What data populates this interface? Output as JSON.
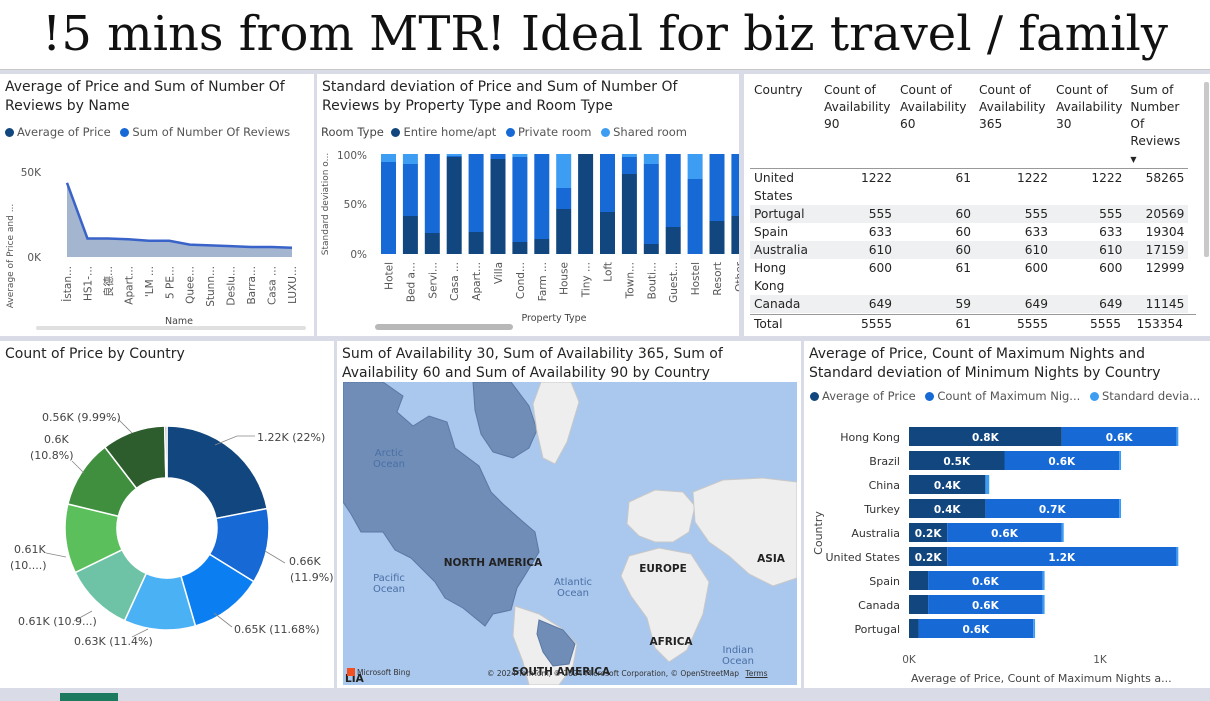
{
  "header": {
    "title": "!5 mins from MTR! Ideal for biz travel / family"
  },
  "colors": {
    "dark": "#12467f",
    "mid": "#1769d6",
    "light": "#3c9df3",
    "area": "#a3b5cf",
    "line": "#3a63c9"
  },
  "p1": {
    "title": "Average of Price and Sum of Number Of Reviews by Name",
    "legend": [
      "Average of Price",
      "Sum of Number Of Reviews"
    ],
    "ylabel": "Average of Price and ...",
    "xlabel": "Name",
    "yticks": [
      "50K",
      "0K"
    ]
  },
  "p2": {
    "title": "Standard deviation of Price and Sum of Number Of Reviews by Property Type and Room Type",
    "legend_title": "Room Type",
    "legend": [
      "Entire home/apt",
      "Private room",
      "Shared room"
    ],
    "ylabel": "Standard deviation o...",
    "xlabel": "Property Type",
    "yticks": [
      "100%",
      "50%",
      "0%"
    ]
  },
  "p3": {
    "headers": [
      "Country",
      "Count of Availability 90",
      "Count of Availability 60",
      "Count of Availability 365",
      "Count of Availability 30",
      "Sum of Number Of Reviews"
    ],
    "rows": [
      [
        "United States",
        "1222",
        "61",
        "1222",
        "1222",
        "58265"
      ],
      [
        "Portugal",
        "555",
        "60",
        "555",
        "555",
        "20569"
      ],
      [
        "Spain",
        "633",
        "60",
        "633",
        "633",
        "19304"
      ],
      [
        "Australia",
        "610",
        "60",
        "610",
        "610",
        "17159"
      ],
      [
        "Hong Kong",
        "600",
        "61",
        "600",
        "600",
        "12999"
      ],
      [
        "Canada",
        "649",
        "59",
        "649",
        "649",
        "11145"
      ]
    ],
    "total": [
      "Total",
      "5555",
      "61",
      "5555",
      "5555",
      "153354"
    ],
    "sort_icon": "sort-descending-icon"
  },
  "p4": {
    "title": "Count of Price by Country",
    "labels": [
      "1.22K (22%)",
      "0.66K",
      "(11.9%)",
      "0.65K (11.68%)",
      "0.63K (11.4%)",
      "0.61K (10.9...)",
      "0.61K",
      "(10....)",
      "0.6K",
      "(10.8%)",
      "0.56K (9.99%)"
    ]
  },
  "p5": {
    "title": "Sum of Availability 30, Sum of Availability 365, Sum of Availability 60 and Sum of Availability 90 by Country",
    "labels": {
      "arctic1": "Arctic",
      "arctic2": "Ocean",
      "na": "NORTH AMERICA",
      "europe": "EUROPE",
      "asia": "ASIA",
      "pacific1": "Pacific",
      "pacific2": "Ocean",
      "atlantic1": "Atlantic",
      "atlantic2": "Ocean",
      "africa": "AFRICA",
      "sa": "SOUTH AMERICA",
      "indian1": "Indian",
      "indian2": "Ocean",
      "lia": "LIA"
    },
    "brand": "Microsoft Bing",
    "attribution": "© 2024 TomTom, © 2024 Microsoft Corporation, © OpenStreetMap",
    "terms": "Terms"
  },
  "p6": {
    "title": "Average of Price, Count of Maximum Nights and Standard deviation of Minimum Nights by Country",
    "legend": [
      "Average of Price",
      "Count of Maximum Nig...",
      "Standard devia..."
    ],
    "ylabel": "Country",
    "xlabel": "Average of Price, Count of Maximum Nights a...",
    "xticks": [
      "0K",
      "1K"
    ]
  },
  "chart_data": [
    {
      "type": "area",
      "title": "Average of Price and Sum of Number Of Reviews by Name",
      "categories": [
        "İstan...",
        "HS1-...",
        "良德...",
        "Apart...",
        "'LM ...",
        "5 PE...",
        "Quee...",
        "Stunn...",
        "Deslu...",
        "Barra...",
        "Casa ...",
        "LUXU..."
      ],
      "series": [
        {
          "name": "Sum of Number Of Reviews",
          "values": [
            48000,
            12000,
            12000,
            11500,
            10500,
            10500,
            8000,
            7500,
            7000,
            6500,
            6500,
            6000
          ]
        }
      ],
      "xlabel": "Name",
      "ylabel": "Average of Price and ...",
      "ylim": [
        0,
        55000
      ]
    },
    {
      "type": "bar",
      "stacked": "100%",
      "title": "Standard deviation of Price and Sum of Number Of Reviews by Property Type and Room Type",
      "categories": [
        "Hotel",
        "Bed a...",
        "Servi...",
        "Casa ...",
        "Apart...",
        "Villa",
        "Cond...",
        "Farm ...",
        "House",
        "Tiny ...",
        "Loft",
        "Town...",
        "Bouti...",
        "Guest...",
        "Hostel",
        "Resort",
        "Other"
      ],
      "series": [
        {
          "name": "Entire home/apt",
          "values": [
            0,
            38,
            21,
            97,
            22,
            95,
            12,
            15,
            45,
            100,
            42,
            80,
            10,
            27,
            0,
            33,
            38
          ]
        },
        {
          "name": "Private room",
          "values": [
            92,
            52,
            79,
            1,
            78,
            5,
            85,
            85,
            21,
            0,
            58,
            17,
            80,
            73,
            75,
            67,
            62
          ]
        },
        {
          "name": "Shared room",
          "values": [
            8,
            10,
            0,
            2,
            0,
            0,
            3,
            0,
            34,
            0,
            0,
            3,
            10,
            0,
            25,
            0,
            0
          ]
        }
      ],
      "xlabel": "Property Type",
      "ylabel": "Standard deviation o...",
      "ylim": [
        0,
        100
      ]
    },
    {
      "type": "pie",
      "donut": true,
      "title": "Count of Price by Country",
      "values": [
        1220,
        660,
        650,
        630,
        610,
        610,
        600,
        560,
        20
      ],
      "percent": [
        22,
        11.9,
        11.68,
        11.4,
        10.9,
        10.9,
        10.8,
        9.99,
        0.4
      ],
      "colors": [
        "#12467f",
        "#1769d6",
        "#0b7ff2",
        "#4bb1f5",
        "#6ec3a6",
        "#5bbf5b",
        "#3f8f3f",
        "#2d5c2d",
        "#9a9a9a"
      ]
    },
    {
      "type": "bar",
      "orientation": "horizontal",
      "stacked": true,
      "title": "Average of Price, Count of Maximum Nights and Standard deviation of Minimum Nights by Country",
      "categories": [
        "Hong Kong",
        "Brazil",
        "China",
        "Turkey",
        "Australia",
        "United States",
        "Spain",
        "Canada",
        "Portugal"
      ],
      "series": [
        {
          "name": "Average of Price",
          "values": [
            0.8,
            0.5,
            0.4,
            0.4,
            0.2,
            0.2,
            0.1,
            0.1,
            0.05
          ],
          "labels": [
            "0.8K",
            "0.5K",
            "0.4K",
            "0.4K",
            "0.2K",
            "0.2K",
            "",
            "",
            ""
          ]
        },
        {
          "name": "Count of Maximum Nights",
          "values": [
            0.6,
            0.6,
            0.0,
            0.7,
            0.6,
            1.2,
            0.6,
            0.6,
            0.6
          ],
          "labels": [
            "0.6K",
            "0.6K",
            "",
            "0.7K",
            "0.6K",
            "1.2K",
            "0.6K",
            "0.6K",
            "0.6K"
          ]
        },
        {
          "name": "Standard deviation of Minimum Nights",
          "values": [
            0.01,
            0.01,
            0.02,
            0.01,
            0.01,
            0.01,
            0.01,
            0.01,
            0.01
          ]
        }
      ],
      "xlabel": "Average of Price, Count of Maximum Nights a...",
      "ylabel": "Country",
      "xlim": [
        0,
        1.4
      ]
    }
  ]
}
